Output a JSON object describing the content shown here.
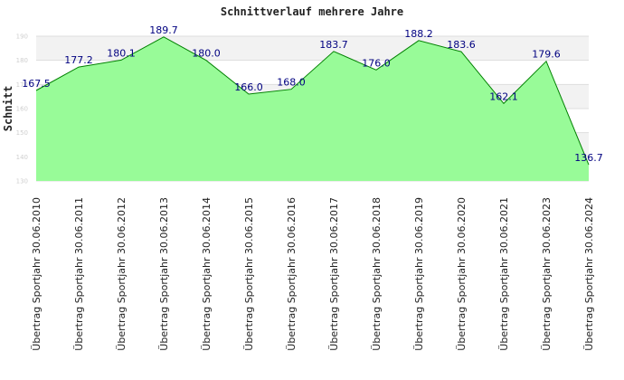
{
  "chart_data": {
    "type": "area",
    "title": "Schnittverlauf mehrere Jahre",
    "ylabel": "Schnitt",
    "xlabel": "",
    "ylim": [
      130,
      190
    ],
    "yticks": [
      "130",
      "140",
      "150",
      "160",
      "170",
      "180",
      "190"
    ],
    "categories": [
      "Übertrag Sportjahr 30.06.2010",
      "Übertrag Sportjahr 30.06.2011",
      "Übertrag Sportjahr 30.06.2012",
      "Übertrag Sportjahr 30.06.2013",
      "Übertrag Sportjahr 30.06.2014",
      "Übertrag Sportjahr 30.06.2015",
      "Übertrag Sportjahr 30.06.2016",
      "Übertrag Sportjahr 30.06.2017",
      "Übertrag Sportjahr 30.06.2018",
      "Übertrag Sportjahr 30.06.2019",
      "Übertrag Sportjahr 30.06.2020",
      "Übertrag Sportjahr 30.06.2021",
      "Übertrag Sportjahr 30.06.2023",
      "Übertrag Sportjahr 30.06.2024"
    ],
    "values": [
      167.5,
      177.2,
      180.1,
      189.7,
      180.0,
      166.0,
      168.0,
      183.7,
      176.0,
      188.2,
      183.6,
      162.1,
      179.6,
      136.7
    ],
    "value_labels": [
      "167.5",
      "177.2",
      "180.1",
      "189.7",
      "180.0",
      "166.0",
      "168.0",
      "183.7",
      "176.0",
      "188.2",
      "183.6",
      "162.1",
      "179.6",
      "136.7"
    ],
    "grid": true,
    "colors": {
      "fill": "#98fb98",
      "line": "#008000",
      "band": "#f2f2f2",
      "grid": "#dddddd",
      "labels": "#000080"
    }
  }
}
